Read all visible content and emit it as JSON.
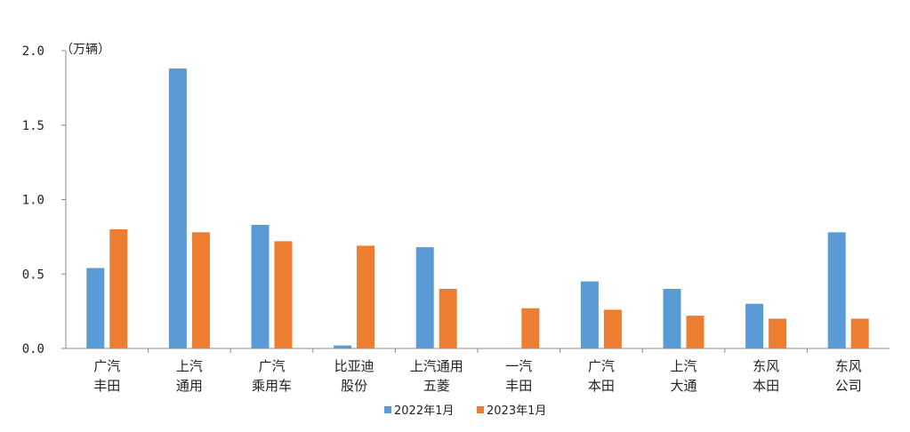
{
  "chart_data": {
    "type": "bar",
    "title": "",
    "unit_label": "（万辆）",
    "xlabel": "",
    "ylabel": "",
    "ylim": [
      0,
      2.0
    ],
    "yticks": [
      "0.0",
      "0.5",
      "1.0",
      "1.5",
      "2.0"
    ],
    "grid": false,
    "legend_position": "bottom",
    "categories": [
      [
        "广汽",
        "丰田"
      ],
      [
        "上汽",
        "通用"
      ],
      [
        "广汽",
        "乘用车"
      ],
      [
        "比亚迪",
        "股份"
      ],
      [
        "上汽通用",
        "五菱"
      ],
      [
        "一汽",
        "丰田"
      ],
      [
        "广汽",
        "本田"
      ],
      [
        "上汽",
        "大通"
      ],
      [
        "东风",
        "本田"
      ],
      [
        "东风",
        "公司"
      ]
    ],
    "series": [
      {
        "name": "2022年1月",
        "color": "#5b9bd5",
        "values": [
          0.54,
          1.88,
          0.83,
          0.02,
          0.68,
          0.0,
          0.45,
          0.4,
          0.3,
          0.78
        ]
      },
      {
        "name": "2023年1月",
        "color": "#ed7d31",
        "values": [
          0.8,
          0.78,
          0.72,
          0.69,
          0.4,
          0.27,
          0.26,
          0.22,
          0.2,
          0.2
        ]
      }
    ]
  }
}
